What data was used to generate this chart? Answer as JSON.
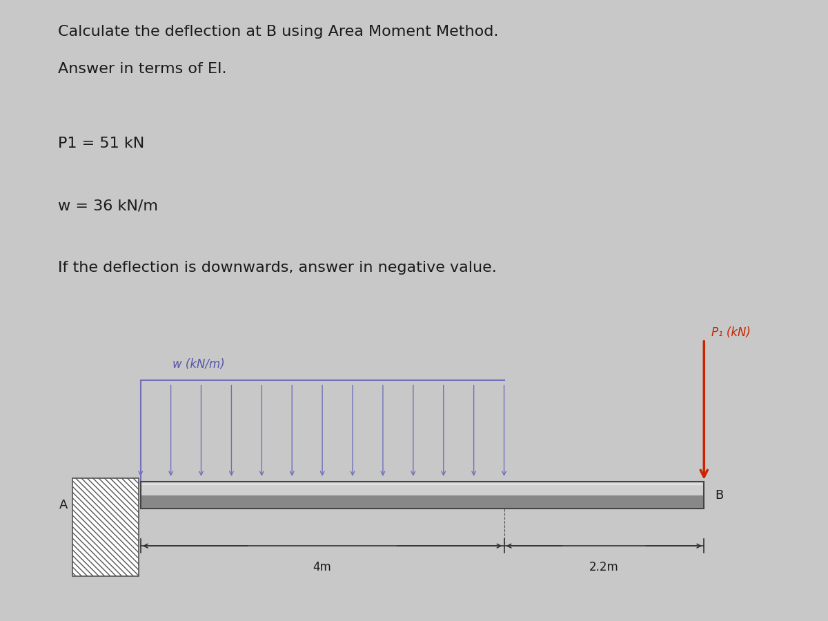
{
  "bg_color": "#c8c8c8",
  "panel_bg": "#e8e8e8",
  "diagram_bg": "#e0e4e0",
  "title_lines": [
    "Calculate the deflection at B using Area Moment Method.",
    "Answer in terms of EI."
  ],
  "param_lines": [
    "P1 = 51 kN",
    "w = 36 kN/m",
    "If the deflection is downwards, answer in negative value."
  ],
  "beam_color_top": "#c8c8c8",
  "beam_color_mid": "#909090",
  "beam_outline": "#444444",
  "wall_hatch_color": "#333333",
  "udl_color": "#7070bb",
  "point_load_color": "#cc2200",
  "label_color": "#333333",
  "label_w": "w (kN/m)",
  "label_P1": "P₁ (kN)",
  "label_A": "A",
  "label_B": "B",
  "label_4m": "4m",
  "label_22m": "2.2m",
  "span_udl": 4.0,
  "span_free": 2.2,
  "title_fontsize": 16,
  "param_fontsize": 16,
  "label_fontsize": 13
}
